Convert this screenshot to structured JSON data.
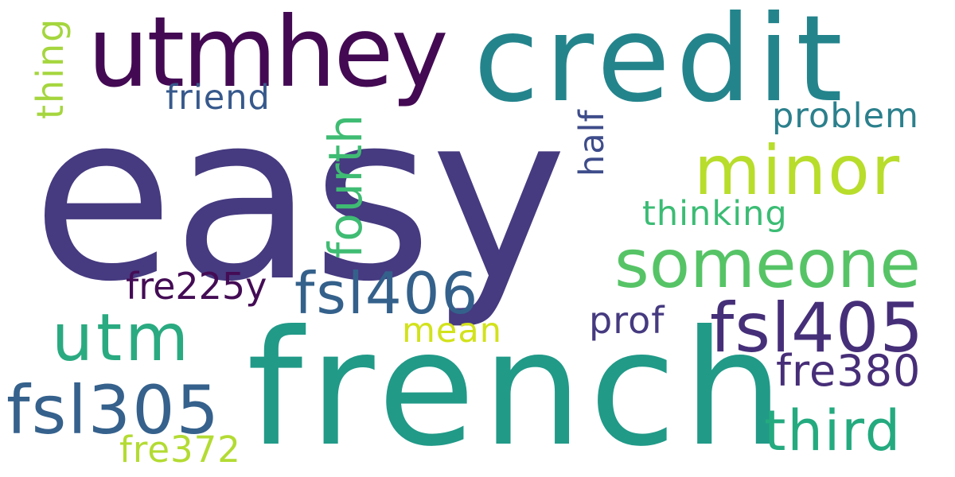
{
  "word_cloud": {
    "words": [
      {
        "text": "easy",
        "color": "#463a80"
      },
      {
        "text": "french",
        "color": "#219a88"
      },
      {
        "text": "credit",
        "color": "#24848c"
      },
      {
        "text": "utmhey",
        "color": "#430a53"
      },
      {
        "text": "minor",
        "color": "#b8dd2b"
      },
      {
        "text": "someone",
        "color": "#56c466"
      },
      {
        "text": "fsl405",
        "color": "#462f79"
      },
      {
        "text": "fsl406",
        "color": "#34618b"
      },
      {
        "text": "fsl305",
        "color": "#35618c"
      },
      {
        "text": "utm",
        "color": "#2aaa80"
      },
      {
        "text": "third",
        "color": "#24aa7f"
      },
      {
        "text": "fre380",
        "color": "#472e78"
      },
      {
        "text": "fre225y",
        "color": "#440c55"
      },
      {
        "text": "problem",
        "color": "#2b808c"
      },
      {
        "text": "thinking",
        "color": "#3bbc74"
      },
      {
        "text": "friend",
        "color": "#37598c"
      },
      {
        "text": "prof",
        "color": "#463a80"
      },
      {
        "text": "mean",
        "color": "#d2e21b"
      },
      {
        "text": "fre372",
        "color": "#b3db33"
      },
      {
        "text": "fourth",
        "color": "#3fbc73"
      },
      {
        "text": "thing",
        "color": "#a5d63e"
      },
      {
        "text": "half",
        "color": "#3e4c8a"
      }
    ]
  }
}
